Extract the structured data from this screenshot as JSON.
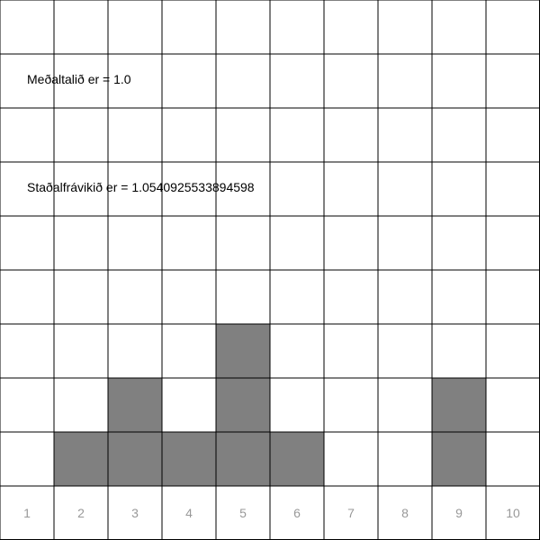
{
  "stats": {
    "mean_label": "Meðaltalið er = 1.0",
    "std_label": "Staðalfrávikið er = 1.0540925533894598"
  },
  "colors": {
    "bar_fill": "#808080",
    "grid_line": "#000000",
    "axis_label": "#999999",
    "background": "#ffffff"
  },
  "chart_data": {
    "type": "bar",
    "categories": [
      "1",
      "2",
      "3",
      "4",
      "5",
      "6",
      "7",
      "8",
      "9",
      "10"
    ],
    "values": [
      0,
      1,
      2,
      1,
      3,
      1,
      0,
      0,
      2,
      0
    ],
    "grid_columns": 10,
    "grid_rows": 10,
    "grid": true
  }
}
